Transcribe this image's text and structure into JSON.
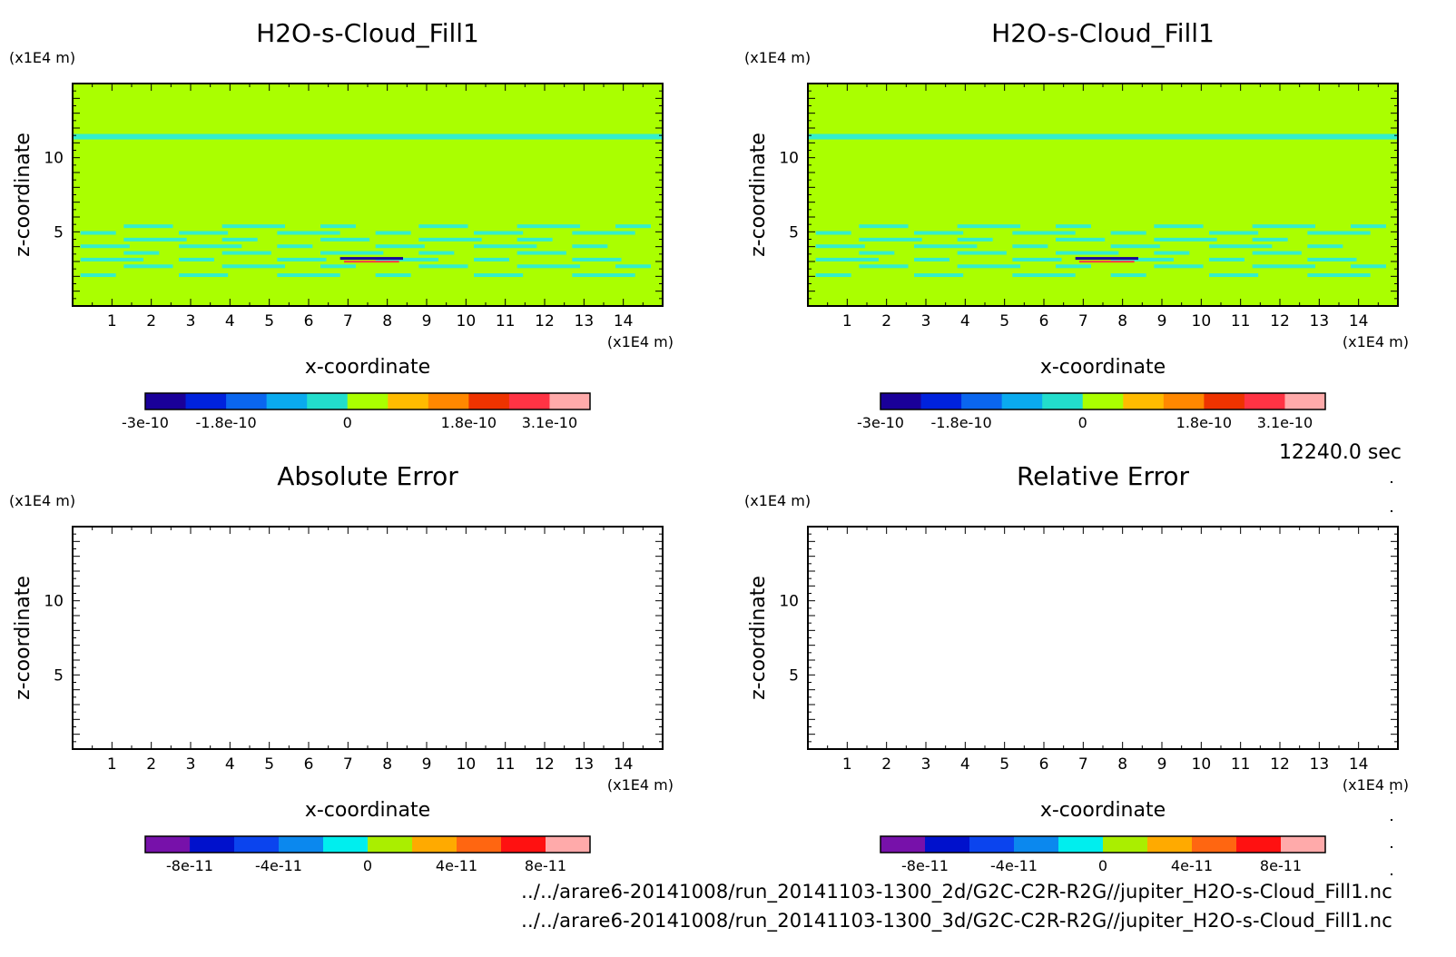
{
  "timestamp": "12240.0 sec",
  "files": [
    "../../arare6-20141008/run_20141103-1300_2d/G2C-C2R-R2G//jupiter_H2O-s-Cloud_Fill1.nc",
    "../../arare6-20141008/run_20141103-1300_3d/G2C-C2R-R2G//jupiter_H2O-s-Cloud_Fill1.nc"
  ],
  "colors": {
    "field_background": "#aaff00",
    "field_feature": "#33eecc",
    "empty_plot": "#ffffff"
  },
  "chart_data": [
    {
      "type": "heatmap",
      "title": "H2O-s-Cloud_Fill1",
      "xlabel": "x-coordinate",
      "ylabel": "z-coordinate",
      "x_unit": "(x1E4 m)",
      "y_unit": "(x1E4 m)",
      "xlim": [
        0,
        15
      ],
      "ylim": [
        0,
        15
      ],
      "x_ticks": [
        1,
        2,
        3,
        4,
        5,
        6,
        7,
        8,
        9,
        10,
        11,
        12,
        13,
        14
      ],
      "y_ticks": [
        5,
        10
      ],
      "filled": true,
      "colorbar": {
        "tick_labels": [
          "-3e-10",
          "-1.8e-10",
          "0",
          "1.8e-10",
          "3.1e-10"
        ],
        "colors": [
          "#1a0099",
          "#0022dd",
          "#0a66ee",
          "#0aaaee",
          "#22ddcc",
          "#aaff00",
          "#ffbb00",
          "#ff8800",
          "#ee3300",
          "#ff3344",
          "#ffaaaa"
        ]
      }
    },
    {
      "type": "heatmap",
      "title": "H2O-s-Cloud_Fill1",
      "xlabel": "x-coordinate",
      "ylabel": "z-coordinate",
      "x_unit": "(x1E4 m)",
      "y_unit": "(x1E4 m)",
      "xlim": [
        0,
        15
      ],
      "ylim": [
        0,
        15
      ],
      "x_ticks": [
        1,
        2,
        3,
        4,
        5,
        6,
        7,
        8,
        9,
        10,
        11,
        12,
        13,
        14
      ],
      "y_ticks": [
        5,
        10
      ],
      "filled": true,
      "colorbar": {
        "tick_labels": [
          "-3e-10",
          "-1.8e-10",
          "0",
          "1.8e-10",
          "3.1e-10"
        ],
        "colors": [
          "#1a0099",
          "#0022dd",
          "#0a66ee",
          "#0aaaee",
          "#22ddcc",
          "#aaff00",
          "#ffbb00",
          "#ff8800",
          "#ee3300",
          "#ff3344",
          "#ffaaaa"
        ]
      }
    },
    {
      "type": "heatmap",
      "title": "Absolute Error",
      "xlabel": "x-coordinate",
      "ylabel": "z-coordinate",
      "x_unit": "(x1E4 m)",
      "y_unit": "(x1E4 m)",
      "xlim": [
        0,
        15
      ],
      "ylim": [
        0,
        15
      ],
      "x_ticks": [
        1,
        2,
        3,
        4,
        5,
        6,
        7,
        8,
        9,
        10,
        11,
        12,
        13,
        14
      ],
      "y_ticks": [
        5,
        10
      ],
      "filled": false,
      "colorbar": {
        "tick_labels": [
          "-8e-11",
          "-4e-11",
          "0",
          "4e-11",
          "8e-11"
        ],
        "colors": [
          "#7711aa",
          "#0011cc",
          "#0b44ee",
          "#0b88ee",
          "#00eeee",
          "#aaee00",
          "#ffaa00",
          "#ff6611",
          "#ff1111",
          "#ffaaaa"
        ]
      }
    },
    {
      "type": "heatmap",
      "title": "Relative Error",
      "xlabel": "x-coordinate",
      "ylabel": "z-coordinate",
      "x_unit": "(x1E4 m)",
      "y_unit": "(x1E4 m)",
      "xlim": [
        0,
        15
      ],
      "ylim": [
        0,
        15
      ],
      "x_ticks": [
        1,
        2,
        3,
        4,
        5,
        6,
        7,
        8,
        9,
        10,
        11,
        12,
        13,
        14
      ],
      "y_ticks": [
        5,
        10
      ],
      "filled": false,
      "colorbar": {
        "tick_labels": [
          "-8e-11",
          "-4e-11",
          "0",
          "4e-11",
          "8e-11"
        ],
        "colors": [
          "#7711aa",
          "#0011cc",
          "#0b44ee",
          "#0b88ee",
          "#00eeee",
          "#aaee00",
          "#ffaa00",
          "#ff6611",
          "#ff1111",
          "#ffaaaa"
        ]
      }
    }
  ]
}
